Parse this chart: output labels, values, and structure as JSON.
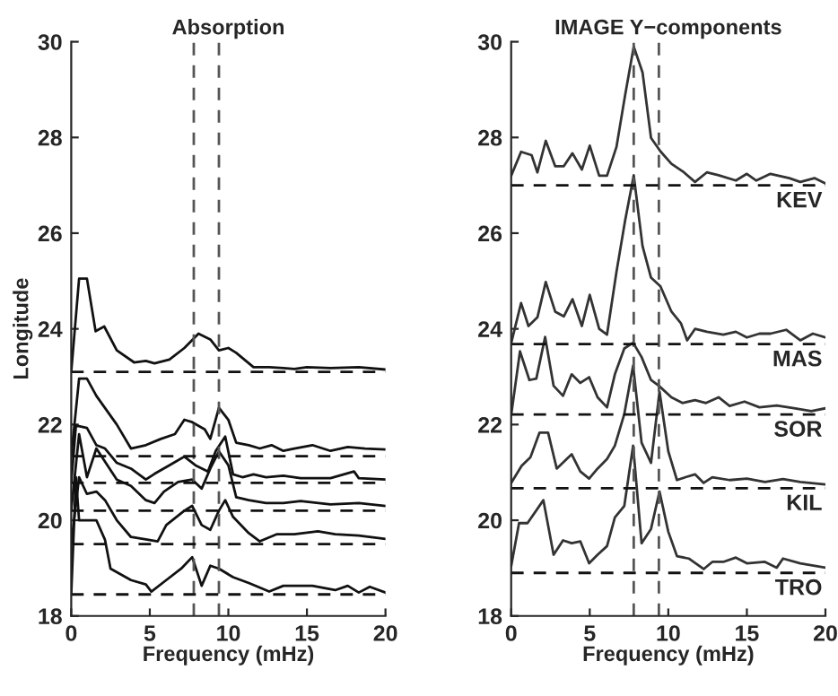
{
  "chart_data": [
    {
      "type": "line",
      "title": "Absorption",
      "xlabel": "Frequency (mHz)",
      "ylabel": "Longitude",
      "xlim": [
        0,
        20
      ],
      "xticks": [
        0,
        5,
        10,
        15,
        20
      ],
      "ylim": [
        18,
        30
      ],
      "yticks": [
        18,
        20,
        22,
        24,
        26,
        28,
        30
      ],
      "grid": false,
      "marker": "none",
      "line_style": "solid",
      "series": [
        {
          "color": "#111111",
          "x": [
            0,
            0.5,
            1.0,
            1.55,
            2.1,
            2.9,
            4.0,
            4.75,
            5.3,
            6.25,
            7.2,
            8.1,
            8.85,
            9.4,
            10,
            10.5,
            11.6,
            12.6,
            13.5,
            14.2,
            15,
            16.5,
            18.3,
            20
          ],
          "values": [
            23.1,
            25.05,
            25.05,
            23.95,
            24.05,
            23.55,
            23.3,
            23.33,
            23.28,
            23.36,
            23.6,
            23.9,
            23.78,
            23.55,
            23.6,
            23.5,
            23.2,
            23.2,
            23.18,
            23.16,
            23.2,
            23.18,
            23.2,
            23.15
          ]
        },
        {
          "color": "#111111",
          "x": [
            0,
            0.5,
            1.0,
            1.6,
            2.9,
            3.8,
            4.75,
            5.7,
            6.6,
            7.2,
            7.7,
            8.5,
            8.85,
            9.4,
            10,
            10.5,
            11.3,
            12,
            12.75,
            13.5,
            14.2,
            15.35,
            16.5,
            17.6,
            18.7,
            20
          ],
          "values": [
            21.34,
            22.96,
            22.96,
            22.6,
            22.0,
            21.5,
            21.57,
            21.7,
            21.8,
            22.1,
            22.05,
            21.9,
            21.7,
            22.35,
            22.1,
            21.62,
            21.57,
            21.5,
            21.57,
            21.45,
            21.5,
            21.57,
            21.45,
            21.53,
            21.5,
            21.48
          ]
        },
        {
          "color": "#111111",
          "x": [
            0,
            0.3,
            1.0,
            1.6,
            2.15,
            2.9,
            3.8,
            4.75,
            5.3,
            6.25,
            7.2,
            7.9,
            8.7,
            9.2,
            9.8,
            10.3,
            10.9,
            11.6,
            12.4,
            13.5,
            14.6,
            16.5,
            18,
            18.3,
            20
          ],
          "values": [
            20.78,
            21.98,
            21.93,
            21.57,
            21.5,
            21.2,
            21.08,
            20.85,
            20.97,
            21.15,
            21.33,
            21.15,
            21.02,
            21.45,
            21.75,
            20.96,
            20.9,
            20.96,
            20.9,
            20.93,
            20.88,
            20.88,
            21.02,
            20.88,
            20.85
          ]
        },
        {
          "color": "#111111",
          "x": [
            0,
            0.5,
            1.0,
            1.6,
            2.9,
            3.8,
            4.75,
            5.3,
            5.9,
            6.8,
            7.7,
            8.3,
            8.85,
            9.4,
            10,
            10.5,
            11.3,
            12.4,
            13.5,
            14.6,
            16.5,
            18.3,
            20
          ],
          "values": [
            20.2,
            21.8,
            20.9,
            21.5,
            20.85,
            20.72,
            20.42,
            20.36,
            20.6,
            20.8,
            20.85,
            20.66,
            21.08,
            21.44,
            21.15,
            20.48,
            20.42,
            20.36,
            20.36,
            20.4,
            20.33,
            20.36,
            20.3
          ]
        },
        {
          "color": "#111111",
          "x": [
            0,
            0.5,
            1.0,
            1.6,
            2.15,
            2.9,
            3.8,
            4.75,
            5.5,
            6.05,
            7.2,
            7.7,
            8.3,
            8.85,
            9.4,
            9.8,
            10.3,
            11.3,
            12,
            13.1,
            14.2,
            15.7,
            16.8,
            18.3,
            20
          ],
          "values": [
            19.5,
            20.9,
            20.55,
            20.6,
            20.42,
            20.0,
            19.65,
            19.6,
            19.56,
            19.9,
            20.2,
            20.3,
            19.9,
            19.8,
            20.2,
            20.42,
            20.07,
            19.73,
            19.56,
            19.71,
            19.71,
            19.77,
            19.71,
            19.68,
            19.61
          ]
        },
        {
          "color": "#111111",
          "x": [
            0,
            0.3,
            0.5,
            1.6,
            2.15,
            2.5,
            3.8,
            4.75,
            5.1,
            6.05,
            7.0,
            7.7,
            8.3,
            8.85,
            9.4,
            10.3,
            11.3,
            12.6,
            13.5,
            15.35,
            16.8,
            17.6,
            18.3,
            19,
            20
          ],
          "values": [
            18.45,
            20.9,
            20.0,
            20.0,
            19.59,
            18.99,
            18.75,
            18.66,
            18.51,
            18.75,
            18.99,
            19.23,
            18.63,
            19.05,
            18.99,
            18.81,
            18.69,
            18.51,
            18.63,
            18.63,
            18.54,
            18.63,
            18.49,
            18.61,
            18.49
          ]
        }
      ],
      "ref_lines": [
        {
          "axis": "x",
          "value": 7.8,
          "color": "#555555",
          "line_style": "dashed"
        },
        {
          "axis": "x",
          "value": 9.4,
          "color": "#555555",
          "line_style": "dashed"
        },
        {
          "axis": "y",
          "value": 23.1,
          "color": "#111111",
          "line_style": "dashed"
        },
        {
          "axis": "y",
          "value": 21.34,
          "color": "#111111",
          "line_style": "dashed"
        },
        {
          "axis": "y",
          "value": 20.78,
          "color": "#111111",
          "line_style": "dashed"
        },
        {
          "axis": "y",
          "value": 20.2,
          "color": "#111111",
          "line_style": "dashed"
        },
        {
          "axis": "y",
          "value": 19.5,
          "color": "#111111",
          "line_style": "dashed"
        },
        {
          "axis": "y",
          "value": 18.45,
          "color": "#111111",
          "line_style": "dashed"
        }
      ]
    },
    {
      "type": "line",
      "title": "IMAGE Y−components",
      "xlabel": "Frequency (mHz)",
      "xlim": [
        0,
        20
      ],
      "xticks": [
        0,
        5,
        10,
        15,
        20
      ],
      "ylim": [
        18,
        30
      ],
      "yticks": [
        18,
        20,
        22,
        24,
        26,
        28,
        30
      ],
      "grid": false,
      "marker": "none",
      "line_style": "solid",
      "series": [
        {
          "color": "#333333",
          "x": [
            0,
            0.63,
            1.3,
            1.67,
            2.2,
            2.8,
            3.35,
            3.9,
            4.5,
            5.0,
            5.6,
            6.1,
            6.7,
            7.25,
            7.8,
            8.36,
            8.9,
            9.5,
            10.2,
            11,
            11.7,
            12.45,
            13.2,
            14.3,
            15,
            15.6,
            16.5,
            17.7,
            18.4,
            19.3,
            20
          ],
          "values": [
            27.2,
            27.7,
            27.63,
            27.27,
            27.93,
            27.4,
            27.4,
            27.67,
            27.33,
            27.83,
            27.2,
            27.2,
            27.8,
            28.88,
            29.9,
            29.36,
            27.99,
            27.71,
            27.45,
            27.27,
            27.07,
            27.27,
            27.21,
            27.1,
            27.24,
            27.1,
            27.24,
            27.15,
            27.07,
            27.15,
            27.04
          ]
        },
        {
          "color": "#333333",
          "x": [
            0,
            0.63,
            1.1,
            1.67,
            2.2,
            2.8,
            3.35,
            3.9,
            4.5,
            5.0,
            5.6,
            6.1,
            6.7,
            7.25,
            7.8,
            8.36,
            8.9,
            9.5,
            10.2,
            10.8,
            11.2,
            11.7,
            12.45,
            13.5,
            14.3,
            15,
            15.8,
            16.5,
            17.5,
            18.4,
            19.2,
            20
          ],
          "values": [
            23.7,
            24.54,
            24.06,
            24.24,
            24.98,
            24.36,
            24.26,
            24.62,
            24.06,
            24.71,
            24.0,
            23.88,
            25.19,
            26.26,
            27.21,
            25.73,
            25.07,
            24.89,
            24.36,
            24.12,
            23.76,
            24.0,
            23.94,
            23.88,
            23.94,
            23.82,
            23.9,
            23.9,
            23.98,
            23.76,
            23.9,
            23.82
          ]
        },
        {
          "color": "#333333",
          "x": [
            0,
            0.56,
            1.16,
            1.6,
            2.16,
            2.7,
            3.3,
            3.85,
            4.4,
            4.96,
            5.5,
            6.1,
            6.6,
            7.2,
            7.76,
            8.3,
            8.9,
            9.4,
            10.2,
            10.9,
            11.7,
            12.4,
            13.2,
            13.9,
            14.85,
            15.8,
            16.9,
            18,
            19.1,
            20
          ],
          "values": [
            22.2,
            23.53,
            22.93,
            22.96,
            23.83,
            22.81,
            22.6,
            23.05,
            22.87,
            22.99,
            22.57,
            22.36,
            23.05,
            23.59,
            23.71,
            23.41,
            22.93,
            22.81,
            22.57,
            22.45,
            22.51,
            22.45,
            22.57,
            22.39,
            22.48,
            22.36,
            22.4,
            22.34,
            22.28,
            22.34
          ]
        },
        {
          "color": "#333333",
          "x": [
            0,
            0.67,
            1.23,
            1.8,
            2.35,
            2.9,
            3.85,
            4.4,
            4.96,
            5.5,
            6.1,
            6.6,
            7.2,
            7.76,
            8.3,
            8.9,
            9.44,
            10,
            10.55,
            11.1,
            11.7,
            12.25,
            12.8,
            13.9,
            15,
            16.15,
            17.3,
            18.4,
            20
          ],
          "values": [
            20.78,
            21.14,
            21.32,
            21.83,
            21.83,
            21.08,
            21.38,
            21.02,
            20.87,
            21.08,
            21.28,
            21.56,
            22.22,
            23.23,
            21.62,
            21.2,
            22.69,
            21.44,
            20.84,
            20.9,
            20.96,
            20.78,
            20.9,
            20.84,
            20.87,
            20.8,
            20.86,
            20.8,
            20.75
          ]
        },
        {
          "color": "#333333",
          "x": [
            0,
            0.5,
            1.04,
            2.05,
            2.7,
            3.3,
            3.85,
            4.4,
            4.96,
            5.5,
            6.1,
            6.6,
            7.2,
            7.76,
            8.3,
            8.9,
            9.44,
            10,
            10.55,
            11.3,
            12.25,
            12.8,
            13.5,
            14.3,
            15,
            16.15,
            16.9,
            17.3,
            18.4,
            20
          ],
          "values": [
            19.04,
            19.94,
            19.94,
            20.42,
            19.28,
            19.58,
            19.52,
            19.56,
            19.1,
            19.28,
            19.46,
            20.06,
            20.3,
            21.56,
            19.52,
            19.82,
            20.6,
            19.76,
            19.25,
            19.2,
            18.98,
            19.13,
            19.13,
            19.22,
            19.1,
            19.13,
            19.01,
            19.2,
            19.1,
            19.01
          ]
        }
      ],
      "ref_lines": [
        {
          "axis": "x",
          "value": 7.8,
          "color": "#555555",
          "line_style": "dashed"
        },
        {
          "axis": "x",
          "value": 9.4,
          "color": "#555555",
          "line_style": "dashed"
        },
        {
          "axis": "y",
          "value": 27.0,
          "label": "KEV",
          "color": "#111111",
          "line_style": "dashed"
        },
        {
          "axis": "y",
          "value": 23.68,
          "label": "MAS",
          "color": "#111111",
          "line_style": "dashed"
        },
        {
          "axis": "y",
          "value": 22.21,
          "label": "SOR",
          "color": "#111111",
          "line_style": "dashed"
        },
        {
          "axis": "y",
          "value": 20.67,
          "label": "KIL",
          "color": "#111111",
          "line_style": "dashed"
        },
        {
          "axis": "y",
          "value": 18.9,
          "label": "TRO",
          "color": "#111111",
          "line_style": "dashed"
        }
      ]
    }
  ]
}
